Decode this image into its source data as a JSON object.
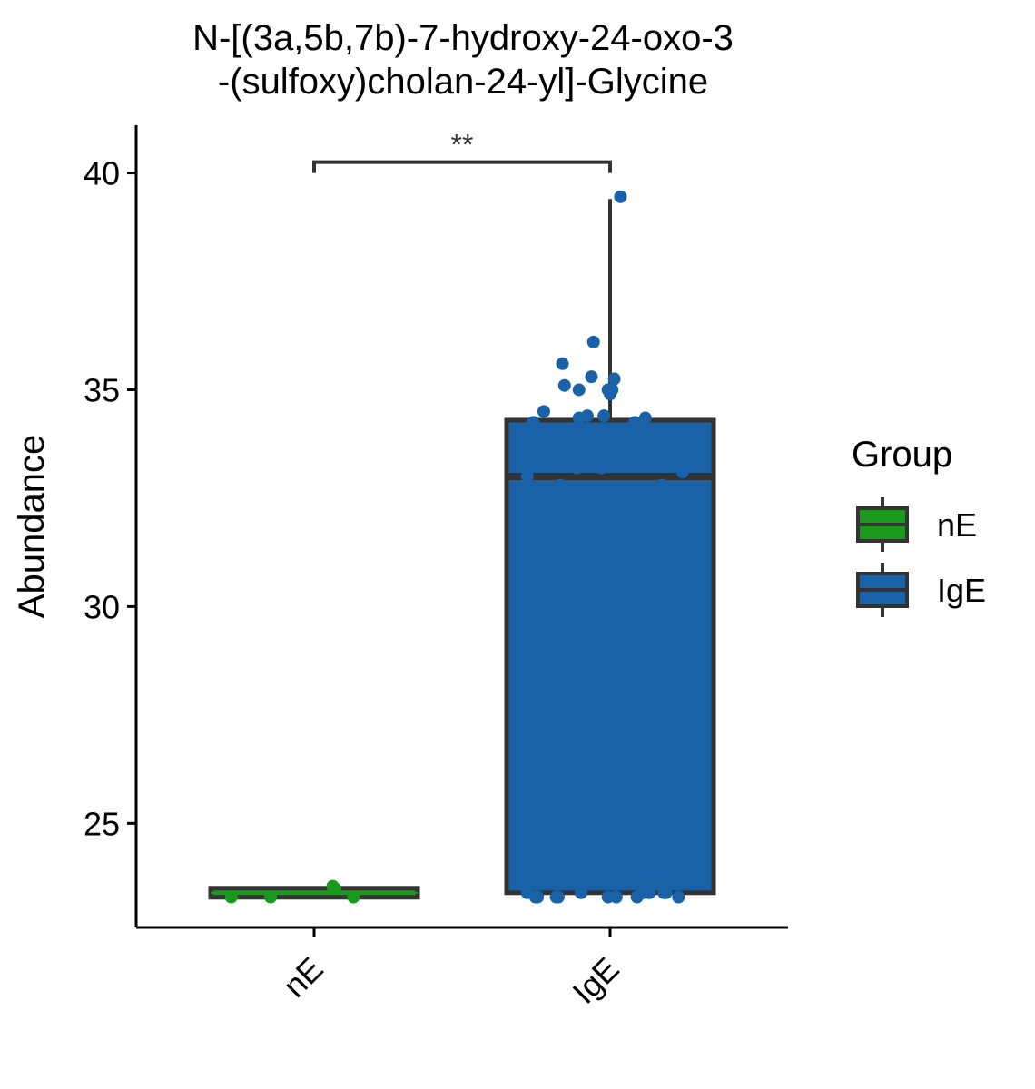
{
  "chart_data": {
    "type": "box",
    "title_lines": [
      "N-[(3a,5b,7b)-7-hydroxy-24-oxo-3",
      "-(sulfoxy)cholan-24-yl]-Glycine"
    ],
    "xlabel": "",
    "ylabel": "Abundance",
    "categories": [
      "nE",
      "IgE"
    ],
    "ylim": [
      22.6,
      41.1
    ],
    "yticks": [
      25,
      30,
      35,
      40
    ],
    "grid": false,
    "legend": {
      "title": "Group",
      "position": "right",
      "entries": [
        {
          "name": "nE",
          "color": "#1a9a1a"
        },
        {
          "name": "IgE",
          "color": "#1a62a8"
        }
      ]
    },
    "series": [
      {
        "name": "nE",
        "color": "#1a9a1a",
        "box": {
          "min": 23.3,
          "q1": 23.3,
          "median": 23.4,
          "q3": 23.5,
          "max": 23.5
        },
        "points": [
          {
            "x": -0.4,
            "y": 23.3
          },
          {
            "x": -0.21,
            "y": 23.3
          },
          {
            "x": 0.09,
            "y": 23.55
          },
          {
            "x": 0.1,
            "y": 23.5
          },
          {
            "x": 0.19,
            "y": 23.3
          }
        ]
      },
      {
        "name": "IgE",
        "color": "#1a62a8",
        "box": {
          "min": 23.4,
          "q1": 23.4,
          "median": 33.0,
          "q3": 34.3,
          "max": 39.4
        },
        "points": [
          {
            "x": -0.4,
            "y": 23.4
          },
          {
            "x": -0.36,
            "y": 23.3
          },
          {
            "x": -0.35,
            "y": 23.3
          },
          {
            "x": -0.26,
            "y": 23.3
          },
          {
            "x": -0.25,
            "y": 23.3
          },
          {
            "x": -0.14,
            "y": 23.4
          },
          {
            "x": -0.01,
            "y": 23.3
          },
          {
            "x": 0.03,
            "y": 23.3
          },
          {
            "x": 0.13,
            "y": 23.3
          },
          {
            "x": 0.16,
            "y": 23.4
          },
          {
            "x": 0.19,
            "y": 23.4
          },
          {
            "x": 0.26,
            "y": 23.4
          },
          {
            "x": 0.27,
            "y": 23.4
          },
          {
            "x": 0.33,
            "y": 23.3
          },
          {
            "x": -0.4,
            "y": 32.8
          },
          {
            "x": -0.4,
            "y": 33.0
          },
          {
            "x": -0.37,
            "y": 34.25
          },
          {
            "x": -0.32,
            "y": 34.5
          },
          {
            "x": -0.24,
            "y": 32.8
          },
          {
            "x": -0.24,
            "y": 33.5
          },
          {
            "x": -0.23,
            "y": 35.6
          },
          {
            "x": -0.22,
            "y": 35.1
          },
          {
            "x": -0.16,
            "y": 33.2
          },
          {
            "x": -0.15,
            "y": 34.35
          },
          {
            "x": -0.15,
            "y": 35.0
          },
          {
            "x": -0.11,
            "y": 34.4
          },
          {
            "x": -0.09,
            "y": 35.3
          },
          {
            "x": -0.08,
            "y": 36.1
          },
          {
            "x": -0.04,
            "y": 33.2
          },
          {
            "x": -0.03,
            "y": 34.4
          },
          {
            "x": -0.01,
            "y": 35.0
          },
          {
            "x": 0.0,
            "y": 34.9
          },
          {
            "x": 0.01,
            "y": 35.0
          },
          {
            "x": 0.02,
            "y": 35.25
          },
          {
            "x": 0.05,
            "y": 39.45
          },
          {
            "x": 0.12,
            "y": 34.25
          },
          {
            "x": 0.17,
            "y": 34.35
          },
          {
            "x": 0.25,
            "y": 32.8
          },
          {
            "x": 0.35,
            "y": 33.1
          },
          {
            "x": 0.36,
            "y": 32.3
          },
          {
            "x": 0.36,
            "y": 32.2
          },
          {
            "x": 0.38,
            "y": 33.7
          },
          {
            "x": 0.39,
            "y": 33.8
          },
          {
            "x": 0.4,
            "y": 32.2
          }
        ]
      }
    ],
    "annotations": [
      {
        "type": "significance",
        "label": "**",
        "from": "nE",
        "to": "IgE",
        "y": 40.25
      }
    ]
  }
}
